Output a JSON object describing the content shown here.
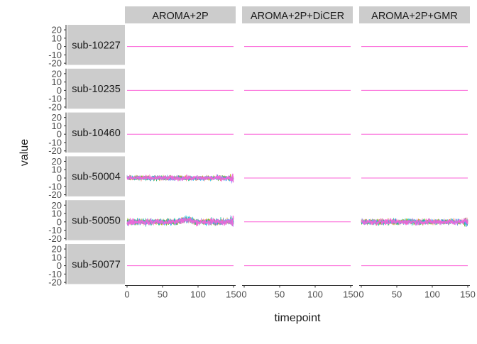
{
  "chart_data": {
    "type": "line",
    "xlabel": "timepoint",
    "ylabel": "value",
    "x_ticks": [
      0,
      50,
      100,
      150
    ],
    "y_ticks": [
      20,
      10,
      0,
      -10,
      -20
    ],
    "xlim": [
      -3,
      153
    ],
    "ylim": [
      -22,
      26
    ],
    "columns": [
      "AROMA+2P",
      "AROMA+2P+DiCER",
      "AROMA+2P+GMR"
    ],
    "rows": [
      "sub-10227",
      "sub-10235",
      "sub-10460",
      "sub-50004",
      "sub-50050",
      "sub-50077"
    ],
    "noisy_panels": [
      {
        "row": "sub-50004",
        "column": "AROMA+2P",
        "amplitude": 6
      },
      {
        "row": "sub-50050",
        "column": "AROMA+2P",
        "amplitude": 8
      },
      {
        "row": "sub-50050",
        "column": "AROMA+2P+GMR",
        "amplitude": 7
      }
    ],
    "flat_value": 0,
    "series_colors": [
      "#F8766D",
      "#C49A00",
      "#53B400",
      "#00C094",
      "#00B6EB",
      "#A58AFF",
      "#FB61D7"
    ],
    "x_range": [
      0,
      150
    ]
  }
}
